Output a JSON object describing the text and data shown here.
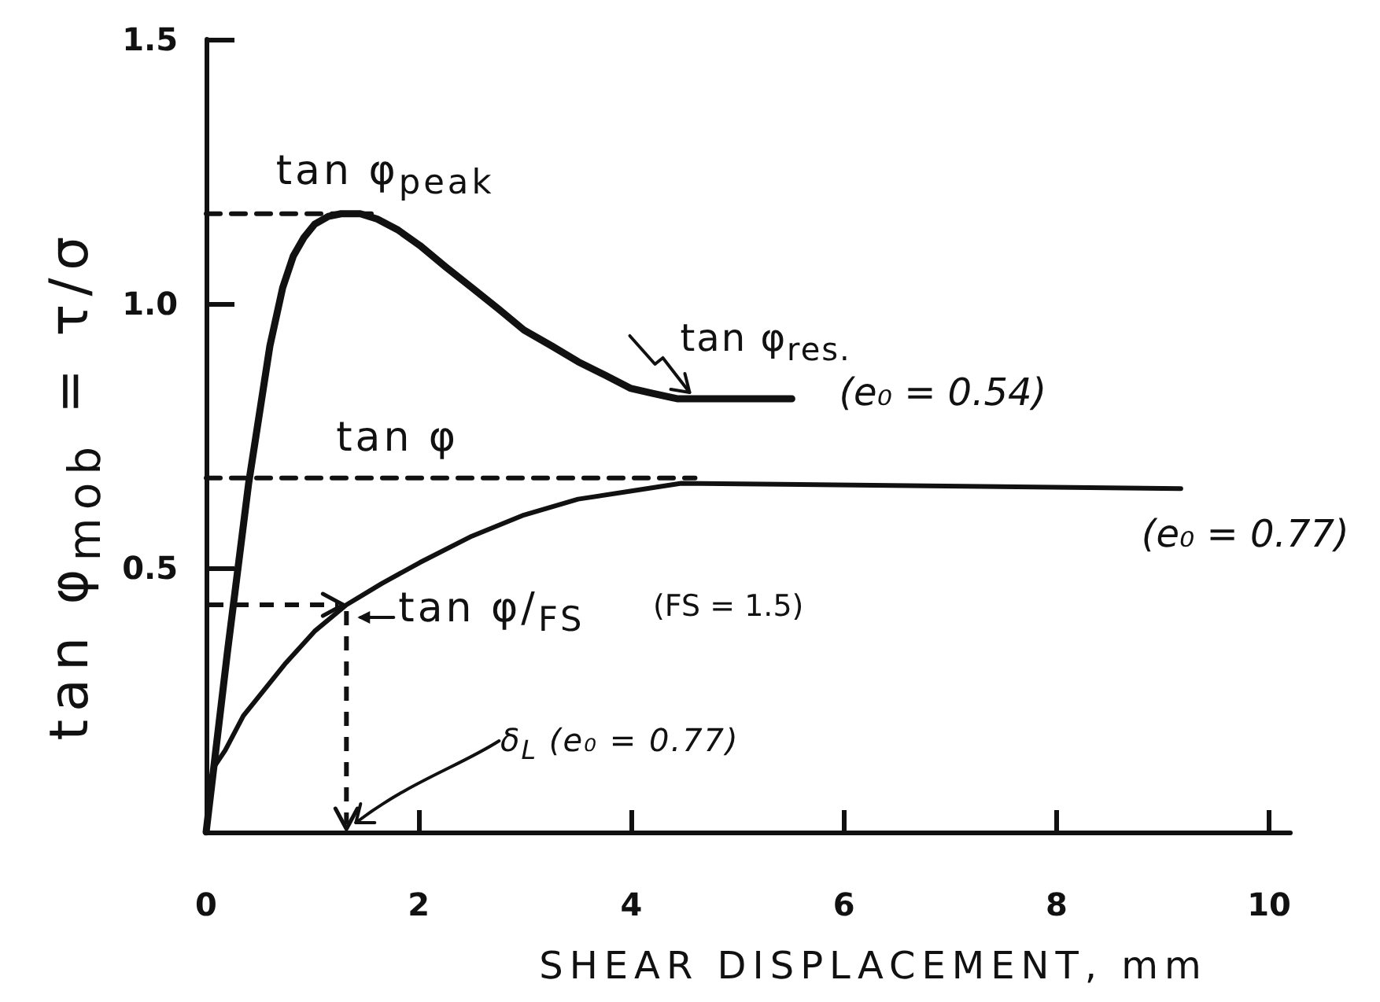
{
  "chart_data": {
    "type": "line",
    "xlabel": "SHEAR DISPLACEMENT, mm",
    "ylabel": "tan φ$_{mob}$ = τ/σ",
    "xlim": [
      0,
      10.2
    ],
    "xticks": [
      0,
      2,
      4,
      6,
      8,
      10
    ],
    "ylim": [
      0,
      1.5
    ],
    "yticks": [
      0.5,
      {
        "value": 1,
        "label": "1.0"
      },
      1.5
    ],
    "marker": "none",
    "series": [
      {
        "name": "(e₀ = 0.54)",
        "color": "#111111",
        "line_style": "solid",
        "x": [
          0,
          0.2,
          0.4,
          0.6,
          0.72,
          0.82,
          0.92,
          1.02,
          1.15,
          1.27,
          1.45,
          1.61,
          1.8,
          2.01,
          2.25,
          2.5,
          2.75,
          2.99,
          3.25,
          3.5,
          3.75,
          3.99,
          4.2,
          4.43,
          5.51
        ],
        "values": [
          0,
          0.34,
          0.66,
          0.92,
          1.03,
          1.09,
          1.125,
          1.15,
          1.165,
          1.17,
          1.17,
          1.16,
          1.14,
          1.11,
          1.07,
          1.03,
          0.99,
          0.95,
          0.92,
          0.89,
          0.865,
          0.84,
          0.83,
          0.82,
          0.82
        ]
      },
      {
        "name": "(e₀ = 0.77)",
        "color": "#111111",
        "line_style": "solid",
        "x": [
          0,
          0.03,
          0.08,
          0.18,
          0.35,
          0.53,
          0.75,
          1.02,
          1.32,
          1.65,
          2.01,
          2.5,
          2.99,
          3.5,
          3.99,
          4.47,
          9.17
        ],
        "values": [
          0,
          0.09,
          0.125,
          0.155,
          0.22,
          0.265,
          0.32,
          0.38,
          0.43,
          0.47,
          0.51,
          0.56,
          0.6,
          0.63,
          0.645,
          0.66,
          0.65
        ]
      },
      {
        "color": "#111111",
        "line_style": "dashed",
        "x": [
          0,
          1.6
        ],
        "values": [
          1.17,
          1.17
        ]
      },
      {
        "color": "#111111",
        "line_style": "dashed",
        "x": [
          0,
          4.6
        ],
        "values": [
          0.67,
          0.67
        ]
      }
    ],
    "annotations": [
      {
        "text": "tan φ$_{peak}$",
        "x": 1.27,
        "y": 1.17
      },
      {
        "text": "tan φ$_{res.}$",
        "x": 4.43,
        "y": 0.82
      },
      {
        "text": "tan φ",
        "x": 1.8,
        "y": 0.67
      },
      {
        "text": "tan φ/$_{FS}$",
        "x": 1.32,
        "y": 0.43
      },
      "(FS = 1.5)",
      "δ$_{L}$ (e₀ = 0.77)"
    ]
  }
}
